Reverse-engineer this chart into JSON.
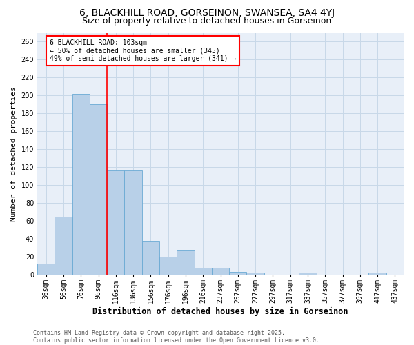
{
  "title": "6, BLACKHILL ROAD, GORSEINON, SWANSEA, SA4 4YJ",
  "subtitle": "Size of property relative to detached houses in Gorseinon",
  "xlabel": "Distribution of detached houses by size in Gorseinon",
  "ylabel": "Number of detached properties",
  "bar_values": [
    12,
    65,
    202,
    190,
    116,
    116,
    38,
    20,
    27,
    8,
    8,
    3,
    2,
    0,
    0,
    2,
    0,
    0,
    0,
    2,
    0
  ],
  "categories": [
    "36sqm",
    "56sqm",
    "76sqm",
    "96sqm",
    "116sqm",
    "136sqm",
    "156sqm",
    "176sqm",
    "196sqm",
    "216sqm",
    "237sqm",
    "257sqm",
    "277sqm",
    "297sqm",
    "317sqm",
    "337sqm",
    "357sqm",
    "377sqm",
    "397sqm",
    "417sqm",
    "437sqm"
  ],
  "bar_color": "#b8d0e8",
  "bar_edge_color": "#6aaad4",
  "grid_color": "#c8d8e8",
  "bg_color": "#e8eff8",
  "vline_x": 3.5,
  "vline_color": "red",
  "annotation_text": "6 BLACKHILL ROAD: 103sqm\n← 50% of detached houses are smaller (345)\n49% of semi-detached houses are larger (341) →",
  "annotation_box_color": "white",
  "annotation_box_edge_color": "red",
  "ylim": [
    0,
    270
  ],
  "yticks": [
    0,
    20,
    40,
    60,
    80,
    100,
    120,
    140,
    160,
    180,
    200,
    220,
    240,
    260
  ],
  "footer": "Contains HM Land Registry data © Crown copyright and database right 2025.\nContains public sector information licensed under the Open Government Licence v3.0.",
  "title_fontsize": 10,
  "subtitle_fontsize": 9,
  "xlabel_fontsize": 8.5,
  "ylabel_fontsize": 8,
  "tick_fontsize": 7,
  "annotation_fontsize": 7,
  "footer_fontsize": 6
}
